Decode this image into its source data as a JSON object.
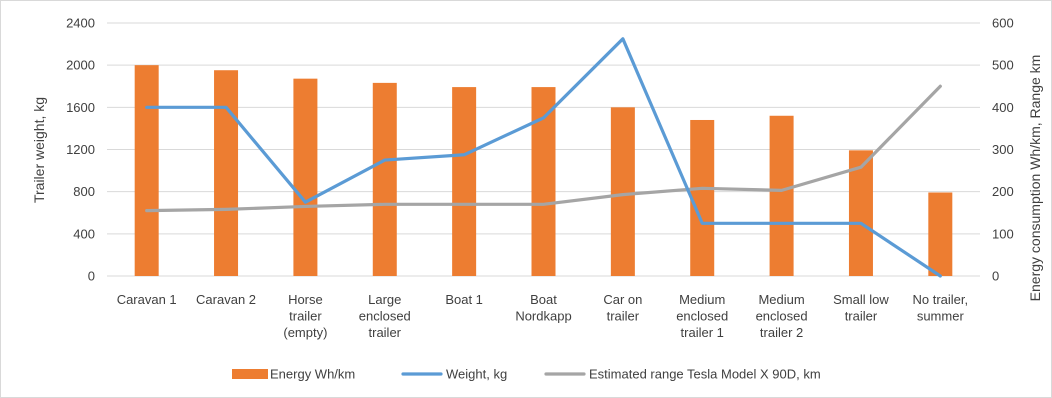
{
  "chart_data": {
    "type": "bar-line-combo",
    "categories": [
      [
        "Caravan 1"
      ],
      [
        "Caravan 2"
      ],
      [
        "Horse",
        "trailer",
        "(empty)"
      ],
      [
        "Large",
        "enclosed",
        "trailer"
      ],
      [
        "Boat 1"
      ],
      [
        "Boat",
        "Nordkapp"
      ],
      [
        "Car on",
        "trailer"
      ],
      [
        "Medium",
        "enclosed",
        "trailer 1"
      ],
      [
        "Medium",
        "enclosed",
        "trailer 2"
      ],
      [
        "Small low",
        "trailer"
      ],
      [
        "No trailer,",
        "summer"
      ]
    ],
    "left_axis": {
      "label": "Trailer weight, kg",
      "min": 0,
      "max": 2400,
      "ticks": [
        "0",
        "400",
        "800",
        "1200",
        "1600",
        "2000",
        "2400"
      ]
    },
    "right_axis": {
      "label": "Energy consumption Wh/km, Range km",
      "min": 0,
      "max": 600,
      "ticks": [
        "0",
        "100",
        "200",
        "300",
        "400",
        "500",
        "600"
      ]
    },
    "series": [
      {
        "name": "Energy Wh/km",
        "kind": "bar",
        "axis": "right",
        "color": "#ed7d31",
        "values": [
          500,
          488,
          468,
          458,
          448,
          448,
          400,
          370,
          380,
          298,
          198
        ]
      },
      {
        "name": "Weight, kg",
        "kind": "line",
        "axis": "left",
        "color": "#5b9bd5",
        "values": [
          1600,
          1600,
          700,
          1100,
          1150,
          1500,
          2250,
          500,
          500,
          500,
          0
        ]
      },
      {
        "name": "Estimated range Tesla Model X 90D, km",
        "kind": "line",
        "axis": "right",
        "color": "#a5a5a5",
        "values": [
          155,
          158,
          165,
          170,
          170,
          170,
          193,
          208,
          203,
          258,
          450
        ]
      }
    ],
    "grid": true,
    "legend_position": "bottom"
  }
}
